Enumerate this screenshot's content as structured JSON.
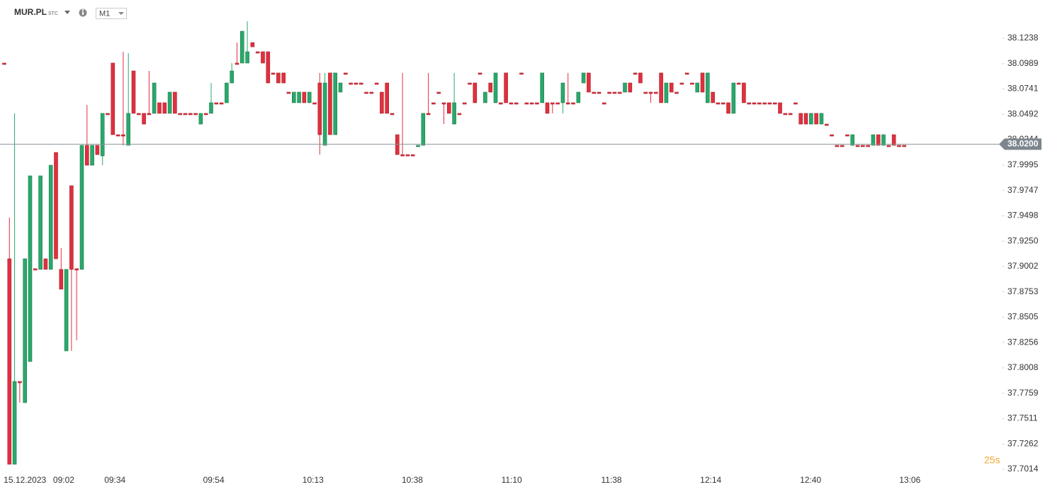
{
  "header": {
    "symbol": "MUR.PL",
    "market": "STC",
    "timeframe": "M1"
  },
  "chart_data": {
    "type": "candlestick",
    "up_color": "#2aa86b",
    "down_color": "#e0303e",
    "ylim": [
      37.6972,
      38.1613
    ],
    "yticks": [
      38.1238,
      38.0989,
      38.0741,
      38.0492,
      38.0244,
      37.9995,
      37.9747,
      37.9498,
      {
        "value": 37.925,
        "label": "37.9250"
      },
      37.9002,
      37.8753,
      37.8505,
      37.8256,
      37.8008,
      37.7759,
      37.7511,
      37.7262,
      37.7014
    ],
    "xlim": [
      -0.82,
      192.6
    ],
    "xticks": [
      {
        "value": 4,
        "label": "15.12.2023"
      },
      {
        "value": 11.5,
        "label": "09:02"
      },
      {
        "value": 21.4,
        "label": "09:34"
      },
      {
        "value": 40.5,
        "label": "09:54"
      },
      {
        "value": 59.7,
        "label": "10:13"
      },
      {
        "value": 78.9,
        "label": "10:38"
      },
      {
        "value": 98.1,
        "label": "11:10"
      },
      {
        "value": 117.4,
        "label": "11:38"
      },
      {
        "value": 136.6,
        "label": "12:14"
      },
      {
        "value": 155.9,
        "label": "12:40"
      },
      {
        "value": 175.1,
        "label": "13:06"
      }
    ],
    "last_price": {
      "value": 38.02,
      "label": "38.0200"
    },
    "countdown": "25s",
    "candles": [
      [
        38.0995,
        38.0995,
        38.0988,
        38.0988
      ],
      [
        37.9077,
        37.948,
        37.7063,
        37.7063
      ],
      [
        37.7063,
        38.0502,
        37.7063,
        37.7875
      ],
      [
        37.7875,
        37.7875,
        37.7667,
        37.7868
      ],
      [
        37.7667,
        37.9077,
        37.7667,
        37.9077
      ],
      [
        37.807,
        37.989,
        37.807,
        37.989
      ],
      [
        37.898,
        37.898,
        37.8973,
        37.8973
      ],
      [
        37.8973,
        37.989,
        37.8973,
        37.989
      ],
      [
        37.9077,
        37.9077,
        37.8973,
        37.8973
      ],
      [
        37.8973,
        37.9994,
        37.8973,
        37.9994
      ],
      [
        38.0119,
        38.0119,
        37.9077,
        37.9077
      ],
      [
        37.8973,
        37.9181,
        37.8779,
        37.8779
      ],
      [
        37.8174,
        37.8973,
        37.8174,
        37.8973
      ],
      [
        37.9793,
        37.9793,
        37.8174,
        37.8973
      ],
      [
        37.898,
        37.898,
        37.8278,
        37.8973
      ],
      [
        37.8973,
        38.0189,
        37.8973,
        38.0189
      ],
      [
        38.0189,
        38.0585,
        37.9994,
        37.9994
      ],
      [
        37.9994,
        38.0189,
        37.9994,
        38.0189
      ],
      [
        38.0189,
        38.0189,
        38.0098,
        38.0098
      ],
      [
        38.0085,
        38.0502,
        37.9994,
        38.0502
      ],
      [
        38.0502,
        38.0502,
        38.0495,
        38.0495
      ],
      [
        38.0995,
        38.0995,
        38.0293,
        38.0293
      ],
      [
        38.0293,
        38.0293,
        38.0286,
        38.0286
      ],
      [
        38.0293,
        38.1106,
        38.0189,
        38.0286
      ],
      [
        38.0189,
        38.1092,
        38.0189,
        38.0502
      ],
      [
        38.0918,
        38.0918,
        38.0502,
        38.0502
      ],
      [
        38.0502,
        38.0502,
        38.0495,
        38.0495
      ],
      [
        38.0502,
        38.0502,
        38.0397,
        38.0397
      ],
      [
        38.0502,
        38.0918,
        38.0495,
        38.0495
      ],
      [
        38.0502,
        38.08,
        38.0502,
        38.08
      ],
      [
        38.0606,
        38.0606,
        38.0502,
        38.0502
      ],
      [
        38.0606,
        38.0606,
        38.0502,
        38.0502
      ],
      [
        38.0502,
        38.071,
        38.0502,
        38.071
      ],
      [
        38.071,
        38.071,
        38.0502,
        38.0502
      ],
      [
        38.0502,
        38.0502,
        38.0495,
        38.0495
      ],
      [
        38.0502,
        38.0502,
        38.0495,
        38.0495
      ],
      [
        38.0502,
        38.0502,
        38.0495,
        38.0495
      ],
      [
        38.0502,
        38.0502,
        38.0495,
        38.0495
      ],
      [
        38.0397,
        38.0502,
        38.0397,
        38.0502
      ],
      [
        38.0502,
        38.0502,
        38.0495,
        38.0495
      ],
      [
        38.0502,
        38.08,
        38.0502,
        38.0606
      ],
      [
        38.0606,
        38.0606,
        38.0599,
        38.0599
      ],
      [
        38.0606,
        38.0606,
        38.0599,
        38.0599
      ],
      [
        38.0606,
        38.08,
        38.0606,
        38.08
      ],
      [
        38.08,
        38.0995,
        38.08,
        38.0918
      ],
      [
        38.0995,
        38.1196,
        38.0988,
        38.0988
      ],
      [
        38.0995,
        38.1307,
        38.0995,
        38.1307
      ],
      [
        38.0995,
        38.1405,
        38.0995,
        38.1106
      ],
      [
        38.1196,
        38.1196,
        38.1154,
        38.1154
      ],
      [
        38.1106,
        38.1106,
        38.1099,
        38.1099
      ],
      [
        38.1106,
        38.1106,
        38.0995,
        38.0995
      ],
      [
        38.1106,
        38.1106,
        38.08,
        38.08
      ],
      [
        38.0898,
        38.0898,
        38.0891,
        38.0891
      ],
      [
        38.0898,
        38.0898,
        38.08,
        38.08
      ],
      [
        38.0898,
        38.0898,
        38.08,
        38.08
      ],
      [
        38.071,
        38.071,
        38.0703,
        38.0703
      ],
      [
        38.0606,
        38.071,
        38.0606,
        38.071
      ],
      [
        38.0606,
        38.071,
        38.0606,
        38.071
      ],
      [
        38.071,
        38.071,
        38.0606,
        38.0606
      ],
      [
        38.0606,
        38.071,
        38.0606,
        38.071
      ],
      [
        38.0606,
        38.0606,
        38.0599,
        38.0599
      ],
      [
        38.08,
        38.0898,
        38.0098,
        38.0293
      ],
      [
        38.0189,
        38.0898,
        38.0189,
        38.08
      ],
      [
        38.0898,
        38.0898,
        38.0293,
        38.0293
      ],
      [
        38.0293,
        38.0898,
        38.0293,
        38.0898
      ],
      [
        38.071,
        38.08,
        38.071,
        38.08
      ],
      [
        38.0898,
        38.0898,
        38.0891,
        38.0891
      ],
      [
        38.08,
        38.08,
        38.0793,
        38.0793
      ],
      [
        38.08,
        38.08,
        38.0793,
        38.0793
      ],
      [
        38.08,
        38.08,
        38.0793,
        38.0793
      ],
      [
        38.071,
        38.071,
        38.0703,
        38.0703
      ],
      [
        38.071,
        38.071,
        38.0703,
        38.0703
      ],
      [
        38.08,
        38.08,
        38.0793,
        38.0793
      ],
      [
        38.071,
        38.071,
        38.0502,
        38.0502
      ],
      [
        38.08,
        38.08,
        38.0502,
        38.0502
      ],
      [
        38.0502,
        38.0502,
        38.0495,
        38.0495
      ],
      [
        38.0293,
        38.0293,
        38.0098,
        38.0098
      ],
      [
        38.0098,
        38.0898,
        38.0091,
        38.0091
      ],
      [
        38.0098,
        38.0098,
        38.0091,
        38.0091
      ],
      [
        38.0098,
        38.0098,
        38.0091,
        38.0091
      ],
      [
        38.0182,
        38.0189,
        38.0182,
        38.0189
      ],
      [
        38.0189,
        38.0502,
        38.0189,
        38.0502
      ],
      [
        38.0502,
        38.0898,
        38.0495,
        38.0495
      ],
      [
        38.0606,
        38.0606,
        38.0599,
        38.0599
      ],
      [
        38.071,
        38.071,
        38.0703,
        38.0703
      ],
      [
        38.0606,
        38.0606,
        38.0397,
        38.0599
      ],
      [
        38.0606,
        38.0606,
        38.0502,
        38.0502
      ],
      [
        38.0397,
        38.0898,
        38.0397,
        38.0606
      ],
      [
        38.0502,
        38.0502,
        38.0495,
        38.0495
      ],
      [
        38.0606,
        38.0606,
        38.0599,
        38.0599
      ],
      [
        38.08,
        38.08,
        38.0793,
        38.0793
      ],
      [
        38.08,
        38.08,
        38.0606,
        38.0606
      ],
      [
        38.0898,
        38.0898,
        38.0891,
        38.0891
      ],
      [
        38.0606,
        38.071,
        38.0606,
        38.071
      ],
      [
        38.08,
        38.08,
        38.071,
        38.071
      ],
      [
        38.0606,
        38.0898,
        38.0606,
        38.0898
      ],
      [
        38.0606,
        38.0606,
        38.0599,
        38.0599
      ],
      [
        38.0898,
        38.0898,
        38.0606,
        38.0606
      ],
      [
        38.0606,
        38.0606,
        38.0599,
        38.0599
      ],
      [
        38.0606,
        38.0606,
        38.0599,
        38.0599
      ],
      [
        38.0898,
        38.0898,
        38.0891,
        38.0891
      ],
      [
        38.0606,
        38.0606,
        38.0599,
        38.0599
      ],
      [
        38.0606,
        38.0606,
        38.0599,
        38.0599
      ],
      [
        38.0606,
        38.0606,
        38.0599,
        38.0599
      ],
      [
        38.0606,
        38.0898,
        38.0606,
        38.0898
      ],
      [
        38.0606,
        38.0606,
        38.0502,
        38.0502
      ],
      [
        38.0606,
        38.0606,
        38.0502,
        38.0599
      ],
      [
        38.0606,
        38.0606,
        38.0599,
        38.0599
      ],
      [
        38.0606,
        38.08,
        38.0502,
        38.08
      ],
      [
        38.0606,
        38.0898,
        38.0599,
        38.0599
      ],
      [
        38.0606,
        38.0606,
        38.0599,
        38.0599
      ],
      [
        38.0606,
        38.071,
        38.0606,
        38.071
      ],
      [
        38.08,
        38.0898,
        38.08,
        38.0898
      ],
      [
        38.0898,
        38.0898,
        38.071,
        38.071
      ],
      [
        38.071,
        38.071,
        38.0703,
        38.0703
      ],
      [
        38.071,
        38.071,
        38.0703,
        38.0703
      ],
      [
        38.0606,
        38.0606,
        38.0599,
        38.0599
      ],
      [
        38.071,
        38.071,
        38.0703,
        38.0703
      ],
      [
        38.071,
        38.071,
        38.0703,
        38.0703
      ],
      [
        38.071,
        38.071,
        38.0703,
        38.0703
      ],
      [
        38.071,
        38.08,
        38.071,
        38.08
      ],
      [
        38.08,
        38.08,
        38.071,
        38.071
      ],
      [
        38.0898,
        38.0898,
        38.0891,
        38.0891
      ],
      [
        38.0898,
        38.0898,
        38.08,
        38.08
      ],
      [
        38.071,
        38.071,
        38.0703,
        38.0703
      ],
      [
        38.071,
        38.071,
        38.0606,
        38.0703
      ],
      [
        38.071,
        38.071,
        38.0703,
        38.0703
      ],
      [
        38.0898,
        38.0898,
        38.0606,
        38.0606
      ],
      [
        38.0606,
        38.08,
        38.0606,
        38.08
      ],
      [
        38.08,
        38.08,
        38.071,
        38.071
      ],
      [
        38.071,
        38.071,
        38.0703,
        38.0703
      ],
      [
        38.08,
        38.08,
        38.0793,
        38.0793
      ],
      [
        38.0898,
        38.0898,
        38.0891,
        38.0891
      ],
      [
        38.08,
        38.08,
        38.0793,
        38.0793
      ],
      [
        38.071,
        38.08,
        38.071,
        38.08
      ],
      [
        38.0898,
        38.0898,
        38.071,
        38.071
      ],
      [
        38.0606,
        38.0898,
        38.0606,
        38.0898
      ],
      [
        38.071,
        38.071,
        38.0606,
        38.0606
      ],
      [
        38.0606,
        38.0606,
        38.0599,
        38.0599
      ],
      [
        38.0606,
        38.0606,
        38.0599,
        38.0599
      ],
      [
        38.0606,
        38.0606,
        38.0502,
        38.0502
      ],
      [
        38.0502,
        38.08,
        38.0502,
        38.08
      ],
      [
        38.08,
        38.08,
        38.0793,
        38.0793
      ],
      [
        38.08,
        38.08,
        38.0606,
        38.0606
      ],
      [
        38.0606,
        38.0606,
        38.0599,
        38.0599
      ],
      [
        38.0606,
        38.0606,
        38.0599,
        38.0599
      ],
      [
        38.0606,
        38.0606,
        38.0599,
        38.0599
      ],
      [
        38.0606,
        38.0606,
        38.0599,
        38.0599
      ],
      [
        38.0606,
        38.0606,
        38.0599,
        38.0599
      ],
      [
        38.0606,
        38.0606,
        38.0599,
        38.0599
      ],
      [
        38.0606,
        38.0606,
        38.0502,
        38.0502
      ],
      [
        38.0502,
        38.0502,
        38.0495,
        38.0495
      ],
      [
        38.0502,
        38.0502,
        38.0495,
        38.0495
      ],
      [
        38.0606,
        38.0606,
        38.0599,
        38.0599
      ],
      [
        38.0502,
        38.0502,
        38.0397,
        38.0397
      ],
      [
        38.0502,
        38.0502,
        38.0397,
        38.0397
      ],
      [
        38.0397,
        38.0502,
        38.0397,
        38.0502
      ],
      [
        38.0502,
        38.0502,
        38.0397,
        38.0397
      ],
      [
        38.0397,
        38.0502,
        38.0397,
        38.0502
      ],
      [
        38.0397,
        38.0397,
        38.039,
        38.039
      ],
      [
        38.0293,
        38.0293,
        38.0286,
        38.0286
      ],
      [
        38.0189,
        38.0189,
        38.0182,
        38.0182
      ],
      [
        38.0189,
        38.0189,
        38.0182,
        38.0182
      ],
      [
        38.0293,
        38.0293,
        38.0286,
        38.0286
      ],
      [
        38.0189,
        38.0293,
        38.0189,
        38.0293
      ],
      [
        38.0189,
        38.0189,
        38.0182,
        38.0182
      ],
      [
        38.0189,
        38.0189,
        38.0182,
        38.0182
      ],
      [
        38.0189,
        38.0189,
        38.0182,
        38.0182
      ],
      [
        38.0189,
        38.0293,
        38.0189,
        38.0293
      ],
      [
        38.0293,
        38.0293,
        38.0189,
        38.0189
      ],
      [
        38.0189,
        38.0293,
        38.0189,
        38.0293
      ],
      [
        38.0189,
        38.0189,
        38.0182,
        38.0182
      ],
      [
        38.0293,
        38.0293,
        38.0189,
        38.0189
      ],
      [
        38.0189,
        38.0189,
        38.0182,
        38.0182
      ],
      [
        38.0189,
        38.0189,
        38.0182,
        38.0182
      ]
    ]
  }
}
